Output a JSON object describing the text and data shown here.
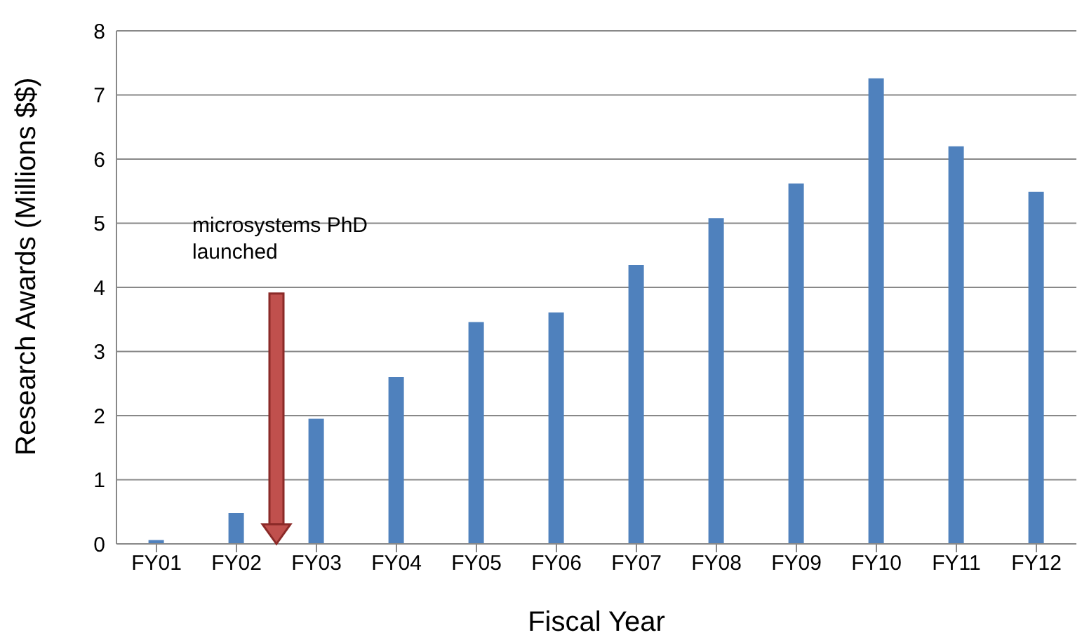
{
  "chart_data": {
    "type": "bar",
    "xlabel": "Fiscal Year",
    "ylabel": "Research Awards (Millions $$)",
    "categories": [
      "FY01",
      "FY02",
      "FY03",
      "FY04",
      "FY05",
      "FY06",
      "FY07",
      "FY08",
      "FY09",
      "FY10",
      "FY11",
      "FY12"
    ],
    "values": [
      0.06,
      0.48,
      1.95,
      2.6,
      3.46,
      3.61,
      4.35,
      5.08,
      5.62,
      7.26,
      6.2,
      5.49
    ],
    "color": "#4f81bd",
    "ylim": [
      0,
      8
    ],
    "yticks": [
      0,
      1,
      2,
      3,
      4,
      5,
      6,
      7,
      8
    ],
    "grid": "y",
    "annotations": [
      "microsystems PhD\nlaunched"
    ]
  }
}
